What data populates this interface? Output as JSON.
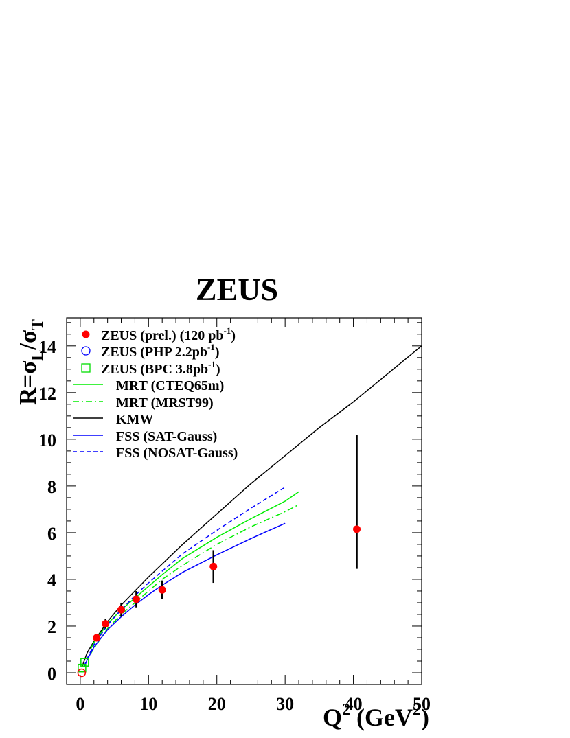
{
  "chart_data": {
    "type": "scatter",
    "title": "ZEUS",
    "ylabel": {
      "main": "R=σ",
      "sub1": "L",
      "mid": "/σ",
      "sub2": "T"
    },
    "xlabel": {
      "main": "Q",
      "sup1": "2",
      "mid": " (GeV",
      "sup2": "2",
      "end": ")"
    },
    "xlim": [
      -2,
      50
    ],
    "ylim": [
      -0.5,
      15.2
    ],
    "x_ticks": [
      0,
      10,
      20,
      30,
      40,
      50
    ],
    "y_ticks": [
      0,
      2,
      4,
      6,
      8,
      10,
      12,
      14
    ],
    "grid": false,
    "legend_position": "top-left",
    "colors": {
      "zeus": "#ff0000",
      "php": "#0000ff",
      "bpc": "#00dd00",
      "mrt": "#00ee00",
      "kmw": "#000000",
      "fss": "#0000ff"
    },
    "legend": [
      {
        "key": "zeus",
        "text": "ZEUS (prel.) (120 pb",
        "sup": "-1",
        "tail": ")",
        "marker": "filled-circle"
      },
      {
        "key": "php",
        "text": "ZEUS (PHP 2.2pb",
        "sup": "-1",
        "tail": ")",
        "marker": "open-circle"
      },
      {
        "key": "bpc",
        "text": "ZEUS (BPC 3.8pb",
        "sup": "-1",
        "tail": ")",
        "marker": "open-square"
      },
      {
        "key": "mrt_cteq",
        "text": "MRT  (CTEQ65m)",
        "marker": "solid-green"
      },
      {
        "key": "mrt_mrst",
        "text": "MRT (MRST99)",
        "marker": "dashdot-green"
      },
      {
        "key": "kmw",
        "text": "KMW",
        "marker": "solid-black"
      },
      {
        "key": "fss_sat",
        "text": "FSS (SAT-Gauss)",
        "marker": "solid-blue"
      },
      {
        "key": "fss_nosat",
        "text": "FSS (NOSAT-Gauss)",
        "marker": "dashed-blue"
      }
    ],
    "points": {
      "zeus": [
        {
          "x": 2.4,
          "y": 1.5,
          "err": 0.15
        },
        {
          "x": 3.7,
          "y": 2.1,
          "err": 0.2
        },
        {
          "x": 6.0,
          "y": 2.7,
          "err": 0.3
        },
        {
          "x": 8.2,
          "y": 3.15,
          "err": 0.35
        },
        {
          "x": 12.0,
          "y": 3.55,
          "err": 0.4
        },
        {
          "x": 19.5,
          "y": 4.55,
          "err": 0.7
        },
        {
          "x": 40.5,
          "y": 6.15,
          "err_up": 4.05,
          "err_down": 1.7
        }
      ],
      "php": [
        {
          "x": 0.2,
          "y": 0.0
        }
      ],
      "bpc": [
        {
          "x": 0.25,
          "y": 0.2
        },
        {
          "x": 0.65,
          "y": 0.45
        }
      ]
    },
    "curves": {
      "kmw": {
        "x": [
          0.25,
          1,
          2,
          4,
          6,
          8,
          10,
          15,
          20,
          25,
          30,
          35,
          40,
          45,
          50
        ],
        "y": [
          0.25,
          0.85,
          1.35,
          2.2,
          2.9,
          3.5,
          4.1,
          5.5,
          6.8,
          8.1,
          9.3,
          10.5,
          11.6,
          12.8,
          14.0
        ]
      },
      "mrt_cteq": {
        "x": [
          1.5,
          2,
          4,
          6,
          8,
          10,
          12,
          15,
          20,
          25,
          30,
          32
        ],
        "y": [
          1.0,
          1.3,
          2.1,
          2.7,
          3.2,
          3.7,
          4.2,
          4.9,
          5.8,
          6.6,
          7.35,
          7.75
        ]
      },
      "mrt_mrst": {
        "x": [
          1.5,
          2,
          4,
          6,
          8,
          10,
          12,
          15,
          20,
          25,
          30,
          32
        ],
        "y": [
          0.8,
          1.05,
          1.9,
          2.5,
          3.0,
          3.5,
          4.0,
          4.6,
          5.5,
          6.25,
          6.9,
          7.2
        ]
      },
      "fss_sat": {
        "x": [
          0.6,
          1,
          2,
          4,
          6,
          8,
          10,
          12,
          15,
          20,
          25,
          30
        ],
        "y": [
          0.25,
          0.55,
          1.1,
          1.85,
          2.4,
          2.9,
          3.35,
          3.75,
          4.3,
          5.05,
          5.75,
          6.4
        ]
      },
      "fss_nosat": {
        "x": [
          0.6,
          1,
          2,
          4,
          6,
          8,
          10,
          12,
          15,
          20,
          25,
          30
        ],
        "y": [
          0.3,
          0.6,
          1.2,
          2.05,
          2.7,
          3.3,
          3.85,
          4.35,
          5.1,
          6.1,
          7.05,
          7.95
        ]
      }
    }
  }
}
